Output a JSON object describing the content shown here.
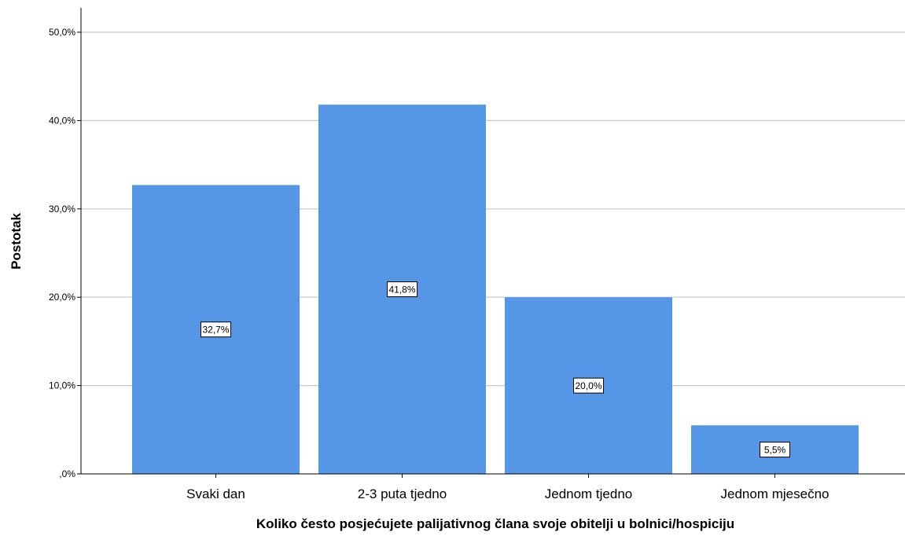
{
  "chart_data": {
    "type": "bar",
    "categories": [
      "Svaki dan",
      "2-3 puta tjedno",
      "Jednom tjedno",
      "Jednom mjesečno"
    ],
    "values": [
      32.7,
      41.8,
      20.0,
      5.5
    ],
    "data_labels": [
      "32,7%",
      "41,8%",
      "20,0%",
      "5,5%"
    ],
    "xlabel": "Koliko često posjećujete palijativnog člana svoje obitelji u bolnici/hospiciju",
    "ylabel": "Postotak",
    "ylim": [
      0,
      50
    ],
    "yticks": [
      0,
      10,
      20,
      30,
      40,
      50
    ],
    "ytick_labels": [
      ",0%",
      "10,0%",
      "20,0%",
      "30,0%",
      "40,0%",
      "50,0%"
    ],
    "bar_color": "#5596e6",
    "grid": true
  }
}
